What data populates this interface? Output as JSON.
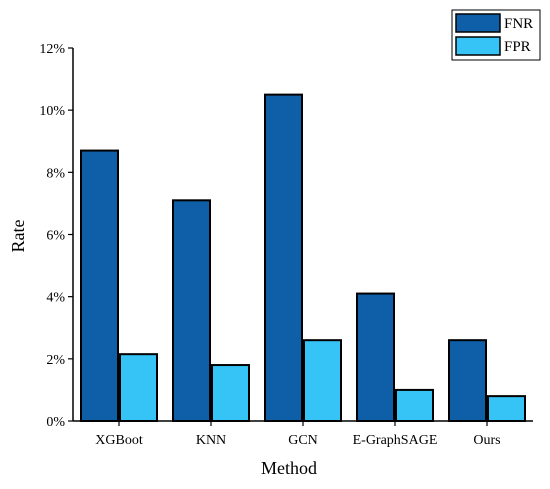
{
  "chart_data": {
    "type": "bar",
    "xlabel": "Method",
    "ylabel": "Rate",
    "categories": [
      "XGBoot",
      "KNN",
      "GCN",
      "E-GraphSAGE",
      "Ours"
    ],
    "series": [
      {
        "name": "FNR",
        "values": [
          8.7,
          7.1,
          10.5,
          4.1,
          2.6
        ],
        "color": "#0F5FA8"
      },
      {
        "name": "FPR",
        "values": [
          2.15,
          1.8,
          2.6,
          1.0,
          0.8
        ],
        "color": "#35C4F5"
      }
    ],
    "ylim": [
      0,
      12
    ],
    "yticks": [
      0,
      2,
      4,
      6,
      8,
      10,
      12
    ],
    "ytick_labels": [
      "0%",
      "2%",
      "4%",
      "6%",
      "8%",
      "10%",
      "12%"
    ],
    "grid": false,
    "legend_position": "top-right"
  }
}
